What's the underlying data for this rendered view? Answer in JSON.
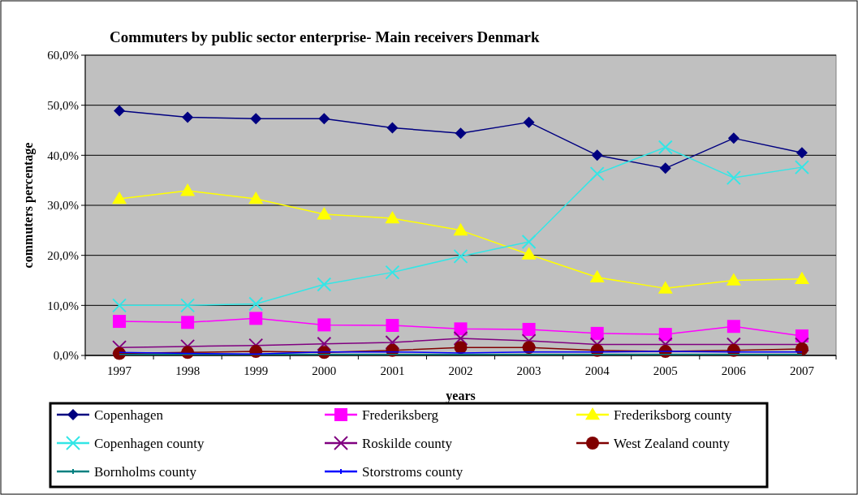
{
  "chart_data": {
    "type": "line",
    "title": "Commuters by public sector enterprise- Main receivers Denmark",
    "xlabel": "years",
    "ylabel": "commuters percentage",
    "categories": [
      "1997",
      "1998",
      "1999",
      "2000",
      "2001",
      "2002",
      "2003",
      "2004",
      "2005",
      "2006",
      "2007"
    ],
    "ylim": [
      0,
      60
    ],
    "yticks": [
      {
        "value": 0,
        "label": "0,0%"
      },
      {
        "value": 10,
        "label": "10,0%"
      },
      {
        "value": 20,
        "label": "20,0%"
      },
      {
        "value": 30,
        "label": "30,0%"
      },
      {
        "value": 40,
        "label": "40,0%"
      },
      {
        "value": 50,
        "label": "50,0%"
      },
      {
        "value": 60,
        "label": "60,0%"
      }
    ],
    "grid": "y",
    "legend": "bottom",
    "series": [
      {
        "name": "Copenhagen",
        "color": "#000080",
        "marker": "diamond",
        "values": [
          48.9,
          47.6,
          47.3,
          47.3,
          45.5,
          44.4,
          46.6,
          40.0,
          37.4,
          43.4,
          40.5
        ]
      },
      {
        "name": "Frederiksberg",
        "color": "#ff00ff",
        "marker": "square",
        "values": [
          6.8,
          6.6,
          7.4,
          6.1,
          6.0,
          5.3,
          5.2,
          4.4,
          4.2,
          5.8,
          3.9
        ]
      },
      {
        "name": "Frederiksborg county",
        "color": "#ffff00",
        "marker": "triangle",
        "values": [
          31.3,
          32.9,
          31.3,
          28.2,
          27.4,
          25.0,
          20.2,
          15.6,
          13.4,
          15.0,
          15.3
        ]
      },
      {
        "name": "Copenhagen county",
        "color": "#33e6e6",
        "marker": "cross",
        "values": [
          10.0,
          10.0,
          10.3,
          14.2,
          16.6,
          19.8,
          22.7,
          36.3,
          41.6,
          35.5,
          37.6
        ]
      },
      {
        "name": "Roskilde county",
        "color": "#800080",
        "marker": "cross",
        "values": [
          1.6,
          1.8,
          2.0,
          2.3,
          2.6,
          3.4,
          2.9,
          2.2,
          2.2,
          2.2,
          2.2
        ]
      },
      {
        "name": "West Zealand county",
        "color": "#800000",
        "marker": "circle",
        "values": [
          0.4,
          0.6,
          0.8,
          0.6,
          1.0,
          1.6,
          1.6,
          1.0,
          0.8,
          1.0,
          1.3
        ]
      },
      {
        "name": "Bornholms county",
        "color": "#008080",
        "marker": "none",
        "values": [
          0.2,
          0.2,
          0.2,
          0.2,
          0.2,
          0.2,
          0.2,
          0.2,
          0.2,
          0.2,
          0.2
        ]
      },
      {
        "name": "Storstroms county",
        "color": "#0000ff",
        "marker": "none",
        "values": [
          0.6,
          0.4,
          0.3,
          0.7,
          0.7,
          0.5,
          0.7,
          0.7,
          0.8,
          0.7,
          0.7
        ]
      }
    ]
  }
}
